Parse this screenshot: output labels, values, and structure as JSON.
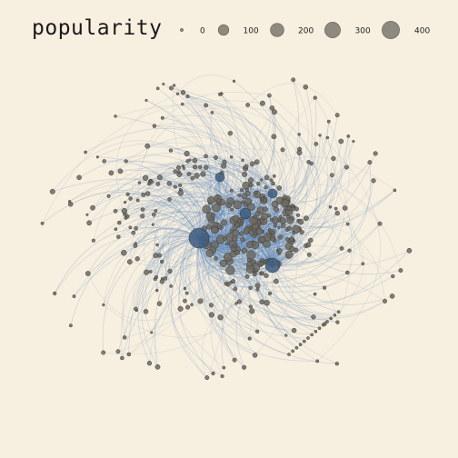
{
  "legend": {
    "title": "popularity",
    "items": [
      {
        "label": "0",
        "value": 0
      },
      {
        "label": "100",
        "value": 100
      },
      {
        "label": "200",
        "value": 200
      },
      {
        "label": "300",
        "value": 300
      },
      {
        "label": "400",
        "value": 400
      }
    ]
  },
  "colors": {
    "background": "#f7efdf",
    "edge": "#5b86b8",
    "node_fill": "#6f6a62",
    "node_stroke": "#3d3a35",
    "hub_fill": "#3f5e80"
  }
}
